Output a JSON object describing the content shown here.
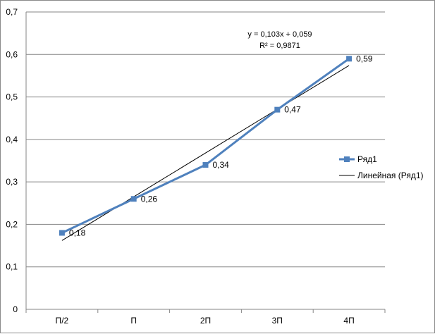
{
  "chart_data": {
    "type": "line",
    "categories": [
      "Π/2",
      "Π",
      "2Π",
      "3Π",
      "4Π"
    ],
    "series": [
      {
        "name": "Ряд1",
        "values": [
          0.18,
          0.26,
          0.34,
          0.47,
          0.59
        ],
        "color": "#4F81BD"
      }
    ],
    "data_labels": [
      "0,18",
      "0,26",
      "0,34",
      "0,47",
      "0,59"
    ],
    "trendline": {
      "name": "Линейная (Ряд1)",
      "type": "linear",
      "slope": 0.103,
      "intercept": 0.059,
      "equation": "y = 0,103x + 0,059",
      "r_squared": "R² = 0,9871",
      "color": "#000000"
    },
    "ylim": [
      0,
      0.7
    ],
    "ytick_values": [
      0,
      0.1,
      0.2,
      0.3,
      0.4,
      0.5,
      0.6,
      0.7
    ],
    "ytick_labels": [
      "0",
      "0,1",
      "0,2",
      "0,3",
      "0,4",
      "0,5",
      "0,6",
      "0,7"
    ],
    "grid": true,
    "legend_position": "right",
    "title": "",
    "xlabel": "",
    "ylabel": ""
  }
}
